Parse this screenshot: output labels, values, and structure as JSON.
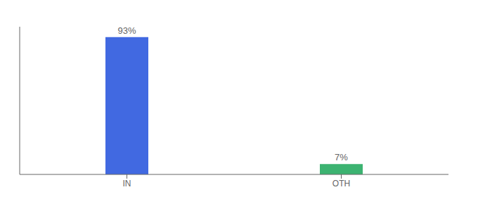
{
  "chart_data": {
    "type": "bar",
    "categories": [
      "IN",
      "OTH"
    ],
    "values": [
      93,
      7
    ],
    "value_labels": [
      "93%",
      "7%"
    ],
    "data_labels": true,
    "colors": [
      "#4169E1",
      "#3CB371"
    ],
    "ylim": [
      0,
      100
    ],
    "yticks": [],
    "tick_labels": "x",
    "grid": false
  }
}
